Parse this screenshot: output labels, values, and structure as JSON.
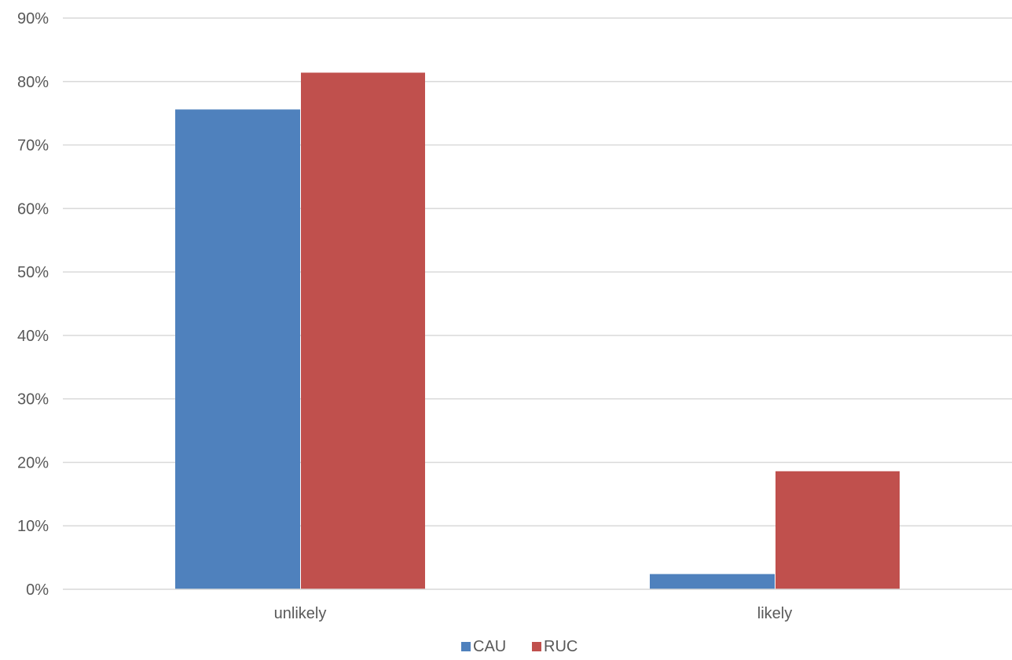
{
  "chart_data": {
    "type": "bar",
    "categories": [
      "unlikely",
      "likely"
    ],
    "series": [
      {
        "name": "CAU",
        "values": [
          75.6,
          2.4
        ],
        "color": "#4f81bd"
      },
      {
        "name": "RUC",
        "values": [
          81.4,
          18.6
        ],
        "color": "#c0504d"
      }
    ],
    "ylim": [
      0,
      90
    ],
    "yticks": [
      0,
      10,
      20,
      30,
      40,
      50,
      60,
      70,
      80,
      90
    ],
    "ytick_labels": [
      "0%",
      "10%",
      "20%",
      "30%",
      "40%",
      "50%",
      "60%",
      "70%",
      "80%",
      "90%"
    ],
    "grid": true,
    "legend": "bottom-center"
  }
}
